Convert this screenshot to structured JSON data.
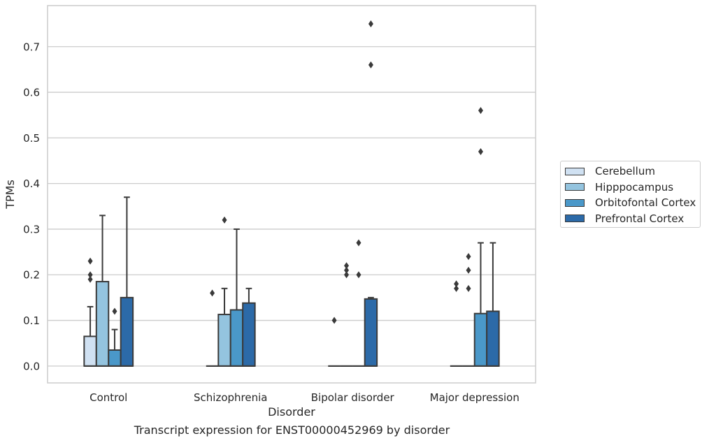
{
  "chart_data": {
    "type": "box",
    "xlabel": "Disorder",
    "ylabel": "TPMs",
    "caption": "Transcript expression for ENST00000452969 by disorder",
    "ylim": [
      -0.037,
      0.79
    ],
    "yticks": [
      0.0,
      0.1,
      0.2,
      0.3,
      0.4,
      0.5,
      0.6,
      0.7
    ],
    "ytick_labels": [
      "0.0",
      "0.1",
      "0.2",
      "0.3",
      "0.4",
      "0.5",
      "0.6",
      "0.7"
    ],
    "categories": [
      "Control",
      "Schizophrenia",
      "Bipolar disorder",
      "Major depression"
    ],
    "grid": "horizontal",
    "legend_position": "right",
    "series": [
      {
        "name": "Cerebellum",
        "color": "#d0e1f2",
        "boxes": [
          {
            "min": 0.0,
            "q1": 0.0,
            "median": 0.0,
            "q3": 0.065,
            "max": 0.13,
            "outliers": [
              0.19,
              0.2,
              0.23
            ]
          },
          {
            "min": 0.0,
            "q1": 0.0,
            "median": 0.0,
            "q3": 0.0,
            "max": 0.0,
            "outliers": [
              0.16
            ]
          },
          {
            "min": 0.0,
            "q1": 0.0,
            "median": 0.0,
            "q3": 0.0,
            "max": 0.0,
            "outliers": [
              0.1
            ]
          },
          {
            "min": 0.0,
            "q1": 0.0,
            "median": 0.0,
            "q3": 0.0,
            "max": 0.0,
            "outliers": [
              0.17,
              0.18
            ]
          }
        ]
      },
      {
        "name": "Hipppocampus",
        "color": "#94c4df",
        "boxes": [
          {
            "min": 0.0,
            "q1": 0.0,
            "median": 0.0,
            "q3": 0.185,
            "max": 0.33,
            "outliers": []
          },
          {
            "min": 0.0,
            "q1": 0.0,
            "median": 0.0,
            "q3": 0.113,
            "max": 0.17,
            "outliers": [
              0.32
            ]
          },
          {
            "min": 0.0,
            "q1": 0.0,
            "median": 0.0,
            "q3": 0.0,
            "max": 0.0,
            "outliers": [
              0.2,
              0.21,
              0.22
            ]
          },
          {
            "min": 0.0,
            "q1": 0.0,
            "median": 0.0,
            "q3": 0.0,
            "max": 0.0,
            "outliers": [
              0.17,
              0.21,
              0.24
            ]
          }
        ]
      },
      {
        "name": "Orbitofontal Cortex",
        "color": "#4a98c9",
        "boxes": [
          {
            "min": 0.0,
            "q1": 0.0,
            "median": 0.0,
            "q3": 0.035,
            "max": 0.08,
            "outliers": [
              0.12
            ]
          },
          {
            "min": 0.0,
            "q1": 0.0,
            "median": 0.0,
            "q3": 0.123,
            "max": 0.3,
            "outliers": []
          },
          {
            "min": 0.0,
            "q1": 0.0,
            "median": 0.0,
            "q3": 0.0,
            "max": 0.0,
            "outliers": [
              0.2,
              0.27
            ]
          },
          {
            "min": 0.0,
            "q1": 0.0,
            "median": 0.0,
            "q3": 0.115,
            "max": 0.27,
            "outliers": [
              0.47,
              0.56
            ]
          }
        ]
      },
      {
        "name": "Prefrontal Cortex",
        "color": "#2c6aa8",
        "boxes": [
          {
            "min": 0.0,
            "q1": 0.0,
            "median": 0.0,
            "q3": 0.15,
            "max": 0.37,
            "outliers": []
          },
          {
            "min": 0.0,
            "q1": 0.0,
            "median": 0.0,
            "q3": 0.138,
            "max": 0.17,
            "outliers": []
          },
          {
            "min": 0.0,
            "q1": 0.0,
            "median": 0.0,
            "q3": 0.147,
            "max": 0.15,
            "outliers": [
              0.66,
              0.75
            ]
          },
          {
            "min": 0.0,
            "q1": 0.0,
            "median": 0.0,
            "q3": 0.12,
            "max": 0.27,
            "outliers": []
          }
        ]
      }
    ]
  }
}
